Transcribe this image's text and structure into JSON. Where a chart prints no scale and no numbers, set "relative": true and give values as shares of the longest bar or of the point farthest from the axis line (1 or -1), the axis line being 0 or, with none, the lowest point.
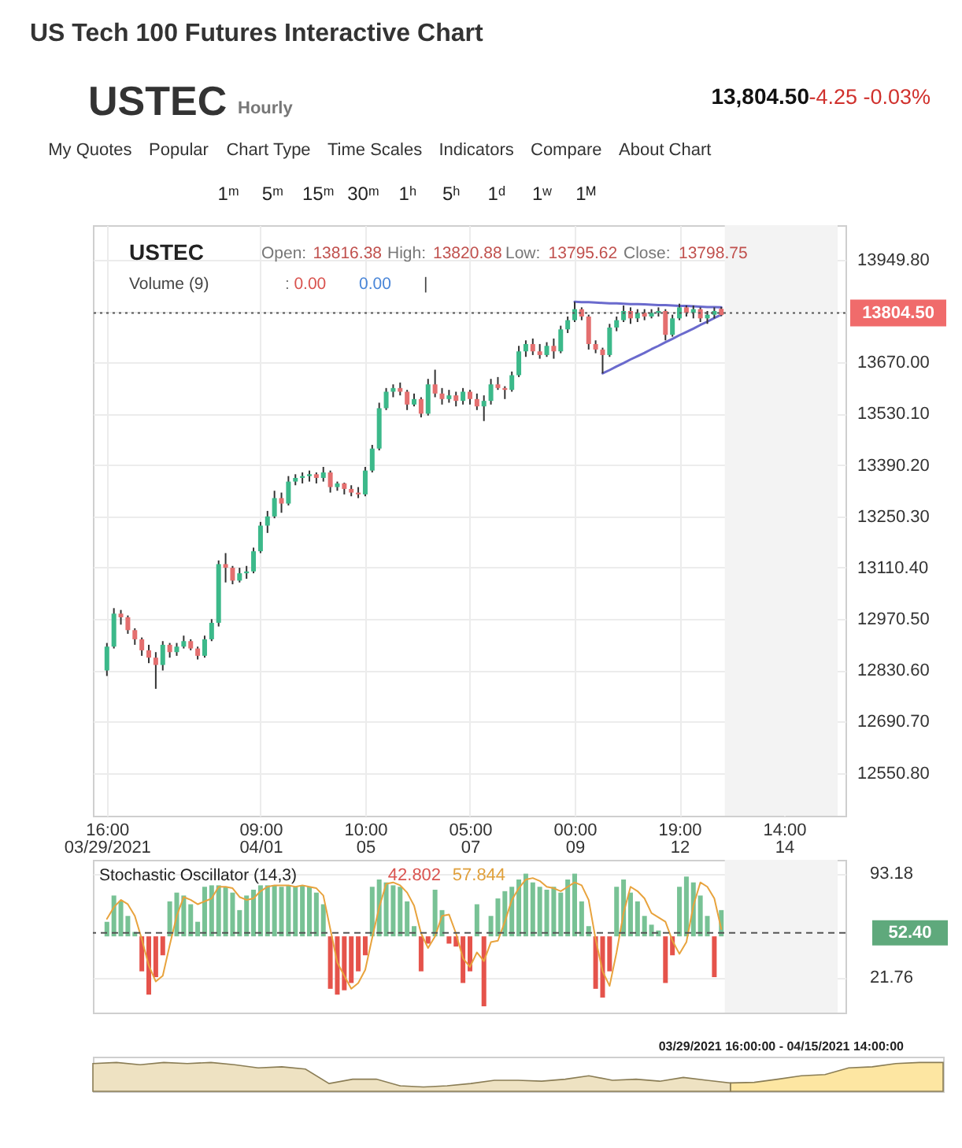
{
  "chart_data": [
    {
      "type": "candlestick",
      "title": "US Tech 100 Futures Interactive Chart",
      "annotations": [
        "USTEC",
        "Hourly",
        "13,804.50",
        "-4.25 -0.03%",
        "My Quotes",
        "Popular",
        "Chart Type",
        "Time Scales",
        "Indicators",
        "Compare",
        "About Chart",
        "1ᵐ",
        "5ᵐ",
        "15ᵐ",
        "30ᵐ",
        "1ʰ",
        "5ʰ",
        "1ᵈ",
        "1ʷ",
        "1ᴹ",
        "USTEC",
        "Open:",
        "13816.38",
        "High:",
        "13820.88",
        "Low:",
        "13795.62",
        "Close:",
        "13798.75",
        "Volume (9)",
        ":",
        "0.00",
        "0.00",
        "|"
      ],
      "categories": [
        "16:00\n03/29/2021",
        null,
        null,
        null,
        null,
        null,
        null,
        null,
        null,
        null,
        null,
        null,
        null,
        null,
        null,
        null,
        null,
        null,
        null,
        null,
        null,
        null,
        "09:00\n04/01",
        null,
        null,
        null,
        null,
        null,
        null,
        null,
        null,
        null,
        null,
        null,
        null,
        null,
        null,
        "10:00\n05",
        null,
        null,
        null,
        null,
        null,
        null,
        null,
        null,
        null,
        null,
        null,
        null,
        null,
        null,
        "05:00\n07",
        null,
        null,
        null,
        null,
        null,
        null,
        null,
        null,
        null,
        null,
        null,
        null,
        null,
        null,
        "00:00\n09",
        null,
        null,
        null,
        null,
        null,
        null,
        null,
        null,
        null,
        null,
        null,
        null,
        null,
        null,
        "19:00\n12",
        null,
        null,
        null,
        null,
        null,
        null,
        null,
        null,
        null,
        null,
        null,
        null,
        null,
        null,
        "14:00\n14",
        null,
        null,
        null,
        null,
        null,
        null,
        null
      ],
      "ohlc": [
        [
          12830,
          12905,
          12815,
          12895
        ],
        [
          12895,
          13000,
          12890,
          12985
        ],
        [
          12985,
          12995,
          12955,
          12975
        ],
        [
          12975,
          12980,
          12930,
          12940
        ],
        [
          12940,
          12945,
          12900,
          12915
        ],
        [
          12915,
          12920,
          12870,
          12885
        ],
        [
          12885,
          12900,
          12850,
          12865
        ],
        [
          12865,
          12880,
          12780,
          12845
        ],
        [
          12845,
          12910,
          12830,
          12900
        ],
        [
          12900,
          12905,
          12865,
          12880
        ],
        [
          12880,
          12905,
          12870,
          12895
        ],
        [
          12895,
          12925,
          12890,
          12910
        ],
        [
          12910,
          12915,
          12885,
          12890
        ],
        [
          12890,
          12895,
          12860,
          12870
        ],
        [
          12870,
          12925,
          12865,
          12915
        ],
        [
          12915,
          12970,
          12910,
          12960
        ],
        [
          12960,
          13130,
          12950,
          13120
        ],
        [
          13120,
          13150,
          13070,
          13110
        ],
        [
          13110,
          13115,
          13065,
          13075
        ],
        [
          13075,
          13110,
          13070,
          13095
        ],
        [
          13095,
          13115,
          13080,
          13100
        ],
        [
          13100,
          13165,
          13095,
          13155
        ],
        [
          13155,
          13235,
          13150,
          13225
        ],
        [
          13225,
          13265,
          13205,
          13250
        ],
        [
          13250,
          13320,
          13245,
          13300
        ],
        [
          13300,
          13315,
          13260,
          13285
        ],
        [
          13285,
          13360,
          13280,
          13345
        ],
        [
          13345,
          13365,
          13335,
          13355
        ],
        [
          13355,
          13370,
          13340,
          13360
        ],
        [
          13360,
          13375,
          13345,
          13365
        ],
        [
          13365,
          13370,
          13340,
          13355
        ],
        [
          13355,
          13385,
          13345,
          13370
        ],
        [
          13370,
          13375,
          13315,
          13330
        ],
        [
          13330,
          13345,
          13320,
          13340
        ],
        [
          13340,
          13342,
          13310,
          13325
        ],
        [
          13325,
          13335,
          13305,
          13315
        ],
        [
          13315,
          13330,
          13300,
          13310
        ],
        [
          13310,
          13385,
          13305,
          13375
        ],
        [
          13375,
          13445,
          13370,
          13435
        ],
        [
          13435,
          13560,
          13430,
          13545
        ],
        [
          13545,
          13600,
          13540,
          13590
        ],
        [
          13590,
          13610,
          13575,
          13600
        ],
        [
          13600,
          13615,
          13580,
          13590
        ],
        [
          13590,
          13595,
          13540,
          13555
        ],
        [
          13555,
          13585,
          13550,
          13570
        ],
        [
          13570,
          13575,
          13520,
          13530
        ],
        [
          13530,
          13625,
          13525,
          13610
        ],
        [
          13610,
          13650,
          13575,
          13585
        ],
        [
          13585,
          13600,
          13555,
          13570
        ],
        [
          13570,
          13595,
          13560,
          13580
        ],
        [
          13580,
          13590,
          13550,
          13565
        ],
        [
          13565,
          13600,
          13555,
          13590
        ],
        [
          13590,
          13595,
          13555,
          13570
        ],
        [
          13570,
          13585,
          13540,
          13550
        ],
        [
          13550,
          13580,
          13510,
          13565
        ],
        [
          13565,
          13625,
          13555,
          13610
        ],
        [
          13610,
          13630,
          13595,
          13600
        ],
        [
          13600,
          13605,
          13570,
          13595
        ],
        [
          13595,
          13645,
          13590,
          13635
        ],
        [
          13635,
          13715,
          13630,
          13700
        ],
        [
          13700,
          13730,
          13685,
          13720
        ],
        [
          13720,
          13735,
          13690,
          13700
        ],
        [
          13700,
          13720,
          13680,
          13690
        ],
        [
          13690,
          13725,
          13685,
          13715
        ],
        [
          13715,
          13735,
          13680,
          13700
        ],
        [
          13700,
          13770,
          13695,
          13760
        ],
        [
          13760,
          13795,
          13750,
          13785
        ],
        [
          13785,
          13835,
          13780,
          13815
        ],
        [
          13815,
          13820,
          13785,
          13795
        ],
        [
          13795,
          13800,
          13705,
          13720
        ],
        [
          13720,
          13730,
          13695,
          13705
        ],
        [
          13705,
          13710,
          13640,
          13690
        ],
        [
          13690,
          13775,
          13685,
          13765
        ],
        [
          13765,
          13795,
          13755,
          13785
        ],
        [
          13785,
          13825,
          13780,
          13810
        ],
        [
          13810,
          13820,
          13775,
          13790
        ],
        [
          13790,
          13815,
          13780,
          13805
        ],
        [
          13805,
          13815,
          13785,
          13795
        ],
        [
          13795,
          13815,
          13790,
          13805
        ],
        [
          13805,
          13820,
          13795,
          13810
        ],
        [
          13810,
          13815,
          13730,
          13745
        ],
        [
          13745,
          13800,
          13740,
          13790
        ],
        [
          13790,
          13830,
          13785,
          13820
        ],
        [
          13820,
          13825,
          13795,
          13805
        ],
        [
          13805,
          13825,
          13790,
          13815
        ],
        [
          13815,
          13820,
          13780,
          13790
        ],
        [
          13790,
          13810,
          13775,
          13800
        ],
        [
          13800,
          13820,
          13790,
          13810
        ],
        [
          13816,
          13821,
          13796,
          13799
        ],
        null,
        null,
        null,
        null,
        null,
        null,
        null,
        null,
        null,
        null,
        null,
        null,
        null,
        null,
        null,
        null
      ],
      "colors": [
        "#3cb98a",
        "#3cb98a",
        "#e46f6f",
        "#e46f6f",
        "#e46f6f",
        "#e46f6f",
        "#e46f6f",
        "#e46f6f",
        "#3cb98a",
        "#e46f6f",
        "#3cb98a",
        "#3cb98a",
        "#e46f6f",
        "#e46f6f",
        "#3cb98a",
        "#3cb98a",
        "#3cb98a",
        "#e46f6f",
        "#e46f6f",
        "#3cb98a",
        "#3cb98a",
        "#3cb98a",
        "#3cb98a",
        "#3cb98a",
        "#3cb98a",
        "#e46f6f",
        "#3cb98a",
        "#3cb98a",
        "#3cb98a",
        "#3cb98a",
        "#e46f6f",
        "#3cb98a",
        "#e46f6f",
        "#3cb98a",
        "#e46f6f",
        "#e46f6f",
        "#e46f6f",
        "#3cb98a",
        "#3cb98a",
        "#3cb98a",
        "#3cb98a",
        "#3cb98a",
        "#e46f6f",
        "#e46f6f",
        "#3cb98a",
        "#e46f6f",
        "#3cb98a",
        "#e46f6f",
        "#e46f6f",
        "#3cb98a",
        "#e46f6f",
        "#3cb98a",
        "#e46f6f",
        "#e46f6f",
        "#3cb98a",
        "#3cb98a",
        "#e46f6f",
        "#e46f6f",
        "#3cb98a",
        "#3cb98a",
        "#3cb98a",
        "#e46f6f",
        "#e46f6f",
        "#3cb98a",
        "#e46f6f",
        "#3cb98a",
        "#3cb98a",
        "#3cb98a",
        "#e46f6f",
        "#e46f6f",
        "#e46f6f",
        "#e46f6f",
        "#3cb98a",
        "#3cb98a",
        "#3cb98a",
        "#e46f6f",
        "#3cb98a",
        "#e46f6f",
        "#3cb98a",
        "#3cb98a",
        "#e46f6f",
        "#3cb98a",
        "#3cb98a",
        "#e46f6f",
        "#3cb98a",
        "#e46f6f",
        "#3cb98a",
        "#3cb98a",
        "#e46f6f",
        null,
        null,
        null,
        null,
        null,
        null,
        null,
        null,
        null,
        null,
        null,
        null,
        null,
        null,
        null,
        null
      ],
      "series": [
        {
          "type": "line",
          "color": "#6a6acd",
          "values": [
            null,
            null,
            null,
            null,
            null,
            null,
            null,
            null,
            null,
            null,
            null,
            null,
            null,
            null,
            null,
            null,
            null,
            null,
            null,
            null,
            null,
            null,
            null,
            null,
            null,
            null,
            null,
            null,
            null,
            null,
            null,
            null,
            null,
            null,
            null,
            null,
            null,
            null,
            null,
            null,
            null,
            null,
            null,
            null,
            null,
            null,
            null,
            null,
            null,
            null,
            null,
            null,
            null,
            null,
            null,
            null,
            null,
            null,
            null,
            null,
            null,
            null,
            null,
            null,
            null,
            null,
            null,
            13835,
            13834,
            13834,
            13833,
            13832,
            13831,
            13831,
            13830,
            13829,
            13829,
            13828,
            13827,
            13826,
            13826,
            13825,
            13824,
            13824,
            13823,
            13822,
            13821,
            13821,
            13820,
            null,
            null,
            null,
            null,
            null,
            null,
            null,
            null,
            null,
            null,
            null,
            null,
            null,
            null,
            null,
            null
          ]
        },
        {
          "type": "line",
          "color": "#6a6acd",
          "values": [
            null,
            null,
            null,
            null,
            null,
            null,
            null,
            null,
            null,
            null,
            null,
            null,
            null,
            null,
            null,
            null,
            null,
            null,
            null,
            null,
            null,
            null,
            null,
            null,
            null,
            null,
            null,
            null,
            null,
            null,
            null,
            null,
            null,
            null,
            null,
            null,
            null,
            null,
            null,
            null,
            null,
            null,
            null,
            null,
            null,
            null,
            null,
            null,
            null,
            null,
            null,
            null,
            null,
            null,
            null,
            null,
            null,
            null,
            null,
            null,
            null,
            null,
            null,
            null,
            null,
            null,
            null,
            null,
            null,
            null,
            null,
            13640,
            13649,
            13659,
            13668,
            13678,
            13687,
            13696,
            13706,
            13715,
            13725,
            13734,
            13744,
            13753,
            13762,
            13772,
            13781,
            13791,
            13800,
            null,
            null,
            null,
            null,
            null,
            null,
            null,
            null,
            null,
            null,
            null,
            null,
            null,
            null,
            null,
            null
          ]
        }
      ],
      "ylim": [
        12434,
        14044
      ],
      "yticks": [
        {
          "value": 12550.8,
          "label": "12550.80"
        },
        {
          "value": 12690.7,
          "label": "12690.70"
        },
        {
          "value": 12830.6,
          "label": "12830.60"
        },
        {
          "value": 12970.5,
          "label": "12970.50"
        },
        {
          "value": 13110.4,
          "label": "13110.40"
        },
        {
          "value": 13250.3,
          "label": "13250.30"
        },
        {
          "value": 13390.2,
          "label": "13390.20"
        },
        {
          "value": 13530.1,
          "label": "13530.10"
        },
        {
          "value": 13670,
          "label": "13670.00"
        },
        {
          "value": 13809.9,
          "label": null
        },
        {
          "value": 13949.8,
          "label": "13949.80"
        }
      ],
      "grid": true,
      "ref_lines": [
        {
          "axis": "y",
          "value": 13804.5,
          "label": "13804.50",
          "color": "#555555",
          "line_style": "dotted"
        }
      ]
    },
    {
      "type": "bar",
      "title": "Stochastic Oscillator (14,3)",
      "annotations": [
        "42.802",
        "57.844"
      ],
      "categories": [
        null,
        null,
        null,
        null,
        null,
        null,
        null,
        null,
        null,
        null,
        null,
        null,
        null,
        null,
        null,
        null,
        null,
        null,
        null,
        null,
        null,
        null,
        null,
        null,
        null,
        null,
        null,
        null,
        null,
        null,
        null,
        null,
        null,
        null,
        null,
        null,
        null,
        null,
        null,
        null,
        null,
        null,
        null,
        null,
        null,
        null,
        null,
        null,
        null,
        null,
        null,
        null,
        null,
        null,
        null,
        null,
        null,
        null,
        null,
        null,
        null,
        null,
        null,
        null,
        null,
        null,
        null,
        null,
        null,
        null,
        null,
        null,
        null,
        null,
        null,
        null,
        null,
        null,
        null,
        null,
        null,
        null,
        null,
        null,
        null,
        null,
        null,
        null,
        null,
        null,
        null,
        null,
        null,
        null,
        null,
        null,
        null,
        null,
        null,
        null,
        null,
        null,
        null,
        null,
        null
      ],
      "series": [
        {
          "type": "bar",
          "base": [
            50,
            50,
            50,
            50,
            50,
            50,
            50,
            50,
            50,
            50,
            50,
            50,
            50,
            50,
            50,
            50,
            50,
            50,
            50,
            50,
            50,
            50,
            50,
            50,
            50,
            50,
            50,
            50,
            50,
            50,
            50,
            50,
            50,
            50,
            50,
            50,
            50,
            50,
            50,
            50,
            50,
            50,
            50,
            50,
            50,
            50,
            50,
            50,
            50,
            50,
            50,
            50,
            50,
            50,
            50,
            50,
            50,
            50,
            50,
            50,
            50,
            50,
            50,
            50,
            50,
            50,
            50,
            50,
            50,
            50,
            50,
            50,
            50,
            50,
            50,
            50,
            50,
            50,
            50,
            50,
            50,
            50,
            50,
            50,
            50,
            50,
            50,
            50,
            50,
            null,
            null,
            null,
            null,
            null,
            null,
            null,
            null,
            null,
            null,
            null,
            null,
            null,
            null,
            null,
            null
          ],
          "values": [
            10,
            28,
            24,
            14,
            3,
            -24,
            -40,
            -28,
            -13,
            24,
            30,
            28,
            22,
            10,
            34,
            35,
            35,
            34,
            30,
            18,
            28,
            32,
            35,
            35,
            35,
            34,
            35,
            34,
            35,
            34,
            30,
            22,
            -36,
            -40,
            -37,
            -32,
            -24,
            -13,
            34,
            39,
            37,
            35,
            34,
            24,
            7,
            -24,
            -5,
            32,
            18,
            -5,
            -7,
            -32,
            -24,
            22,
            -48,
            14,
            26,
            31,
            34,
            39,
            43,
            37,
            34,
            32,
            34,
            30,
            39,
            43,
            24,
            7,
            -36,
            -42,
            -24,
            34,
            39,
            30,
            24,
            14,
            8,
            4,
            -32,
            -13,
            34,
            41,
            37,
            28,
            14,
            -28,
            18,
            null,
            null,
            null,
            null,
            null,
            null,
            null,
            null,
            null,
            null,
            null,
            null,
            null,
            null,
            null,
            null
          ],
          "colors": [
            "#78c295",
            "#78c295",
            "#78c295",
            "#78c295",
            "#78c295",
            "#e5534b",
            "#e5534b",
            "#e5534b",
            "#e5534b",
            "#78c295",
            "#78c295",
            "#78c295",
            "#78c295",
            "#78c295",
            "#78c295",
            "#78c295",
            "#78c295",
            "#78c295",
            "#78c295",
            "#78c295",
            "#78c295",
            "#78c295",
            "#78c295",
            "#78c295",
            "#78c295",
            "#78c295",
            "#78c295",
            "#78c295",
            "#78c295",
            "#78c295",
            "#78c295",
            "#78c295",
            "#e5534b",
            "#e5534b",
            "#e5534b",
            "#e5534b",
            "#e5534b",
            "#e5534b",
            "#78c295",
            "#78c295",
            "#78c295",
            "#78c295",
            "#78c295",
            "#78c295",
            "#78c295",
            "#e5534b",
            "#e5534b",
            "#78c295",
            "#78c295",
            "#e5534b",
            "#e5534b",
            "#e5534b",
            "#e5534b",
            "#78c295",
            "#e5534b",
            "#78c295",
            "#78c295",
            "#78c295",
            "#78c295",
            "#78c295",
            "#78c295",
            "#78c295",
            "#78c295",
            "#78c295",
            "#78c295",
            "#78c295",
            "#78c295",
            "#78c295",
            "#78c295",
            "#78c295",
            "#e5534b",
            "#e5534b",
            "#e5534b",
            "#78c295",
            "#78c295",
            "#78c295",
            "#78c295",
            "#78c295",
            "#78c295",
            "#78c295",
            "#e5534b",
            "#e5534b",
            "#78c295",
            "#78c295",
            "#78c295",
            "#78c295",
            "#78c295",
            "#e5534b",
            "#78c295",
            null,
            null,
            null,
            null,
            null,
            null,
            null,
            null,
            null,
            null,
            null,
            null,
            null,
            null,
            null,
            null
          ]
        },
        {
          "type": "line",
          "color": "#e8a33d",
          "values": [
            62,
            70,
            75,
            72,
            64,
            48,
            30,
            19,
            23,
            44,
            64,
            77,
            75,
            72,
            74,
            76,
            84,
            84,
            83,
            77,
            75,
            76,
            81,
            84,
            85,
            85,
            85,
            84,
            85,
            84,
            83,
            78,
            55,
            32,
            23,
            14,
            18,
            27,
            49,
            70,
            86,
            87,
            85,
            80,
            71,
            52,
            42,
            50,
            64,
            65,
            52,
            35,
            29,
            39,
            33,
            46,
            47,
            60,
            75,
            83,
            89,
            90,
            88,
            84,
            83,
            81,
            84,
            87,
            85,
            75,
            48,
            26,
            16,
            39,
            66,
            84,
            81,
            76,
            66,
            63,
            60,
            47,
            38,
            46,
            71,
            87,
            84,
            76,
            55,
            null,
            null,
            null,
            null,
            null,
            null,
            null,
            null,
            null,
            null,
            null,
            null,
            null,
            null,
            null,
            null
          ]
        }
      ],
      "ylim": [
        -2.3,
        102.5
      ],
      "yticks": [
        93.18,
        21.76
      ],
      "grid": "y",
      "ref_lines": [
        {
          "axis": "y",
          "value": 52.4,
          "label": "52.40",
          "color": "#555555",
          "line_style": "dashed"
        }
      ]
    },
    {
      "type": "area",
      "relative": true,
      "annotations": [
        "03/29/2021 16:00:00 - 04/15/2021 14:00:00"
      ],
      "categories": [
        null,
        null,
        null,
        null,
        null,
        null,
        null,
        null,
        null,
        null,
        null,
        null,
        null,
        null,
        null,
        null,
        null,
        null,
        null,
        null,
        null,
        null,
        null,
        null,
        null,
        null,
        null,
        null,
        null,
        null,
        null,
        null,
        null,
        null,
        null,
        null,
        null
      ],
      "series": [
        {
          "color": "#eee2c2",
          "values": [
            0.96,
            1.0,
            0.92,
            1.0,
            0.96,
            1.0,
            0.92,
            0.81,
            0.85,
            0.77,
            0.27,
            0.42,
            0.42,
            0.19,
            0.15,
            0.19,
            0.27,
            0.38,
            0.38,
            0.35,
            0.42,
            0.54,
            0.38,
            0.42,
            0.35,
            0.48,
            0.38,
            0.29,
            null,
            null,
            null,
            null,
            null,
            null,
            null,
            null,
            null
          ]
        },
        {
          "color": "#fde6a2",
          "values": [
            null,
            null,
            null,
            null,
            null,
            null,
            null,
            null,
            null,
            null,
            null,
            null,
            null,
            null,
            null,
            null,
            null,
            null,
            null,
            null,
            null,
            null,
            null,
            null,
            null,
            null,
            null,
            0.29,
            0.31,
            0.42,
            0.54,
            0.58,
            0.81,
            0.85,
            0.96,
            1.0,
            1.0
          ]
        }
      ]
    }
  ]
}
